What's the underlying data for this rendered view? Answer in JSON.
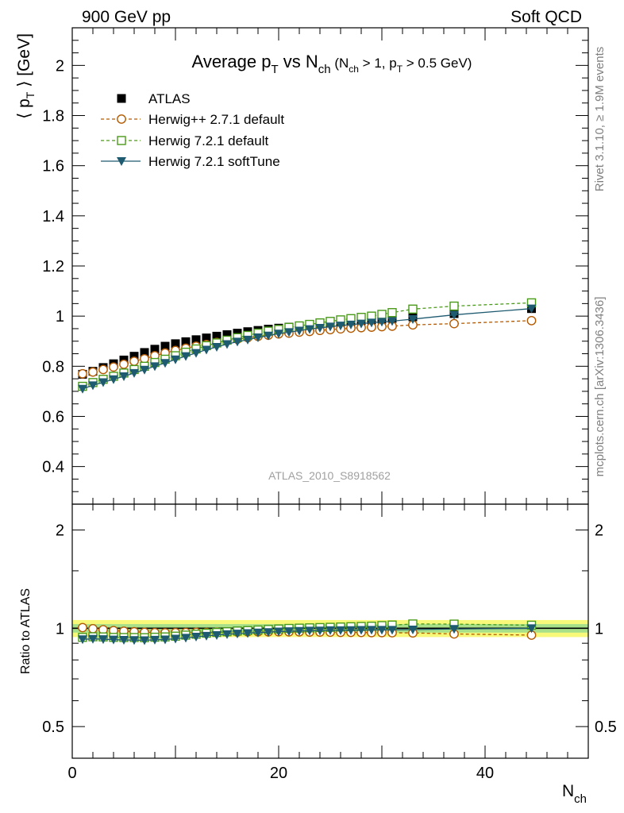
{
  "header": {
    "energy": "900 GeV pp",
    "process": "Soft QCD"
  },
  "side_labels": {
    "rivet": "Rivet 3.1.10, ≥ 1.9M events",
    "mcplots": "mcplots.cern.ch [arXiv:1306.3436]"
  },
  "title": {
    "main_a": "Average p",
    "main_a_sub": "T",
    "main_b": " vs N",
    "main_b_sub": "ch",
    "cond_a": " (N",
    "cond_a_sub": "ch",
    "cond_b": " > 1, p",
    "cond_b_sub": "T",
    "cond_c": " > 0.5 GeV)"
  },
  "analysis_id": "ATLAS_2010_S8918562",
  "colors": {
    "atlas": "#000000",
    "herwigpp": "#b35900",
    "herwig721": "#4a9a1a",
    "softtune": "#1e5a70",
    "band_outer": "#f8f87a",
    "band_inner": "#a8e08a"
  },
  "chart_data": [
    {
      "type": "scatter",
      "panel": "main",
      "ylabel_parts": [
        "⟨ p",
        "T",
        " ⟩  [GeV]"
      ],
      "xlim": [
        0,
        50
      ],
      "ylim": [
        0.25,
        2.15
      ],
      "yticks": [
        0.4,
        0.6,
        0.8,
        1,
        1.2,
        1.4,
        1.6,
        1.8,
        2
      ],
      "ytick_labels": [
        "0.4",
        "0.6",
        "0.8",
        "1",
        "1.2",
        "1.4",
        "1.6",
        "1.8",
        "2"
      ],
      "grid": false,
      "legend_position": "top-left",
      "x": [
        1,
        2,
        3,
        4,
        5,
        6,
        7,
        8,
        9,
        10,
        11,
        12,
        13,
        14,
        15,
        16,
        17,
        18,
        19,
        20,
        21,
        22,
        23,
        24,
        25,
        26,
        27,
        28,
        29,
        30,
        31,
        33,
        37,
        44.5
      ],
      "series": [
        {
          "name": "ATLAS",
          "style": "atlas",
          "values": [
            0.768,
            0.78,
            0.795,
            0.81,
            0.825,
            0.84,
            0.855,
            0.868,
            0.88,
            0.89,
            0.898,
            0.906,
            0.913,
            0.92,
            0.926,
            0.932,
            0.938,
            0.943,
            0.948,
            0.952,
            0.956,
            0.96,
            0.964,
            0.968,
            0.972,
            0.976,
            0.979,
            0.982,
            0.985,
            0.988,
            0.991,
            0.997,
            1.01,
            1.03
          ]
        },
        {
          "name": "Herwig++ 2.7.1 default",
          "style": "herwigpp",
          "values": [
            0.77,
            0.777,
            0.787,
            0.797,
            0.808,
            0.82,
            0.83,
            0.842,
            0.853,
            0.863,
            0.872,
            0.88,
            0.887,
            0.895,
            0.902,
            0.908,
            0.914,
            0.919,
            0.924,
            0.929,
            0.932,
            0.936,
            0.939,
            0.943,
            0.946,
            0.949,
            0.952,
            0.954,
            0.956,
            0.958,
            0.96,
            0.965,
            0.97,
            0.982
          ]
        },
        {
          "name": "Herwig 7.2.1 default",
          "style": "herwig721",
          "values": [
            0.72,
            0.735,
            0.748,
            0.76,
            0.773,
            0.787,
            0.8,
            0.815,
            0.828,
            0.842,
            0.856,
            0.869,
            0.882,
            0.893,
            0.904,
            0.914,
            0.923,
            0.932,
            0.94,
            0.947,
            0.955,
            0.961,
            0.967,
            0.973,
            0.979,
            0.985,
            0.99,
            0.995,
            1.0,
            1.007,
            1.014,
            1.028,
            1.04,
            1.053
          ]
        },
        {
          "name": "Herwig 7.2.1 softTune",
          "style": "softtune",
          "values": [
            0.71,
            0.724,
            0.736,
            0.748,
            0.76,
            0.773,
            0.786,
            0.8,
            0.813,
            0.827,
            0.84,
            0.853,
            0.866,
            0.877,
            0.888,
            0.898,
            0.906,
            0.915,
            0.922,
            0.93,
            0.936,
            0.942,
            0.948,
            0.953,
            0.958,
            0.962,
            0.966,
            0.97,
            0.974,
            0.977,
            0.98,
            0.988,
            1.005,
            1.03
          ]
        }
      ]
    },
    {
      "type": "line",
      "panel": "ratio",
      "ylabel": "Ratio to ATLAS",
      "xlabel_main": "N",
      "xlabel_sub": "ch",
      "xlim": [
        0,
        50
      ],
      "ylim": [
        0.4,
        2.4
      ],
      "y_scale": "log",
      "xticks": [
        0,
        20,
        40
      ],
      "xtick_labels": [
        "0",
        "20",
        "40"
      ],
      "yticks": [
        0.5,
        1,
        2
      ],
      "ytick_labels": [
        "0.5",
        "1",
        "2"
      ],
      "grid": false,
      "band_outer": [
        0.94,
        1.06
      ],
      "band_inner": [
        0.97,
        1.03
      ],
      "x": [
        1,
        2,
        3,
        4,
        5,
        6,
        7,
        8,
        9,
        10,
        11,
        12,
        13,
        14,
        15,
        16,
        17,
        18,
        19,
        20,
        21,
        22,
        23,
        24,
        25,
        26,
        27,
        28,
        29,
        30,
        31,
        33,
        37,
        44.5
      ],
      "series": [
        {
          "name": "Herwig++ 2.7.1 default",
          "style": "herwigpp",
          "values": [
            1.005,
            0.997,
            0.99,
            0.984,
            0.98,
            0.976,
            0.972,
            0.97,
            0.969,
            0.97,
            0.971,
            0.972,
            0.971,
            0.973,
            0.974,
            0.974,
            0.975,
            0.975,
            0.975,
            0.976,
            0.975,
            0.975,
            0.974,
            0.974,
            0.973,
            0.972,
            0.972,
            0.971,
            0.97,
            0.97,
            0.969,
            0.968,
            0.961,
            0.953
          ]
        },
        {
          "name": "Herwig 7.2.1 default",
          "style": "herwig721",
          "values": [
            0.938,
            0.942,
            0.941,
            0.938,
            0.937,
            0.937,
            0.936,
            0.939,
            0.941,
            0.946,
            0.953,
            0.959,
            0.966,
            0.971,
            0.976,
            0.981,
            0.984,
            0.988,
            0.992,
            0.995,
            0.999,
            1.001,
            1.003,
            1.005,
            1.007,
            1.009,
            1.011,
            1.013,
            1.015,
            1.019,
            1.023,
            1.031,
            1.03,
            1.022
          ]
        },
        {
          "name": "Herwig 7.2.1 softTune",
          "style": "softtune",
          "values": [
            0.925,
            0.928,
            0.926,
            0.923,
            0.921,
            0.92,
            0.919,
            0.922,
            0.924,
            0.929,
            0.935,
            0.942,
            0.948,
            0.953,
            0.959,
            0.963,
            0.966,
            0.97,
            0.973,
            0.977,
            0.979,
            0.981,
            0.983,
            0.984,
            0.986,
            0.986,
            0.987,
            0.988,
            0.989,
            0.989,
            0.989,
            0.991,
            0.995,
            1.0
          ]
        }
      ]
    }
  ]
}
